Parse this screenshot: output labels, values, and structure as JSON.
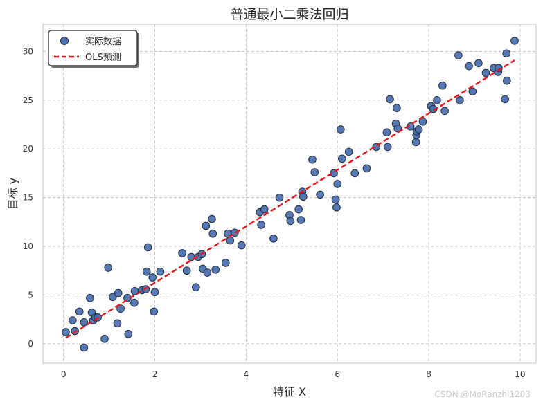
{
  "chart_data": {
    "type": "scatter",
    "title": "普通最小二乘法回归",
    "xlabel": "特征 X",
    "ylabel": "目标 y",
    "xlim": [
      -0.45,
      10.35
    ],
    "ylim": [
      -2,
      32.8
    ],
    "xticks": [
      0,
      2,
      4,
      6,
      8,
      10
    ],
    "yticks": [
      0,
      5,
      10,
      15,
      20,
      25,
      30
    ],
    "xtick_labels": [
      "0",
      "2",
      "4",
      "6",
      "8",
      "10"
    ],
    "ytick_labels": [
      "0",
      "5",
      "10",
      "15",
      "20",
      "25",
      "30"
    ],
    "grid": true,
    "legend": {
      "location": "top-left",
      "entries": [
        "实际数据",
        "OLS预测"
      ]
    },
    "series": [
      {
        "name": "实际数据",
        "kind": "scatter",
        "color": "#4c72b0",
        "x": [
          0.05,
          0.2,
          0.25,
          0.35,
          0.45,
          0.45,
          0.58,
          0.62,
          0.65,
          0.7,
          0.75,
          0.9,
          0.98,
          1.08,
          1.18,
          1.2,
          1.25,
          1.4,
          1.42,
          1.55,
          1.56,
          1.72,
          1.8,
          1.82,
          1.85,
          1.95,
          1.98,
          2.0,
          2.12,
          2.6,
          2.7,
          2.8,
          2.9,
          2.95,
          3.03,
          3.05,
          3.12,
          3.15,
          3.25,
          3.27,
          3.33,
          3.55,
          3.6,
          3.65,
          3.75,
          3.9,
          4.3,
          4.33,
          4.4,
          4.6,
          4.73,
          4.95,
          4.97,
          5.15,
          5.2,
          5.23,
          5.25,
          5.45,
          5.5,
          5.62,
          5.92,
          5.96,
          5.98,
          6.0,
          6.07,
          6.1,
          6.25,
          6.38,
          6.64,
          6.85,
          7.08,
          7.1,
          7.15,
          7.28,
          7.3,
          7.32,
          7.6,
          7.72,
          7.73,
          7.74,
          7.78,
          7.87,
          8.05,
          8.1,
          8.18,
          8.3,
          8.35,
          8.65,
          8.68,
          8.88,
          8.96,
          9.09,
          9.25,
          9.42,
          9.52,
          9.53,
          9.67,
          9.7,
          9.71,
          9.88
        ],
        "y": [
          1.2,
          2.4,
          1.3,
          3.3,
          -0.4,
          2.2,
          4.7,
          3.2,
          2.4,
          2.7,
          2.7,
          0.5,
          7.8,
          4.8,
          2.1,
          5.2,
          3.6,
          4.7,
          1.0,
          4.2,
          5.4,
          5.5,
          5.6,
          7.4,
          9.9,
          6.8,
          3.3,
          5.3,
          7.4,
          9.3,
          7.5,
          8.9,
          5.8,
          8.9,
          9.2,
          7.7,
          12.1,
          7.3,
          12.8,
          11.3,
          7.6,
          8.3,
          11.3,
          10.6,
          11.4,
          10.1,
          13.5,
          12.2,
          13.8,
          10.8,
          15.0,
          13.2,
          12.6,
          13.8,
          12.7,
          15.6,
          15.1,
          18.9,
          17.6,
          15.3,
          17.5,
          14.8,
          14.0,
          16.4,
          22.0,
          19.0,
          19.7,
          17.5,
          18.0,
          20.2,
          21.7,
          20.2,
          25.1,
          22.6,
          24.2,
          22.1,
          22.3,
          20.7,
          21.4,
          21.8,
          22.0,
          22.8,
          24.4,
          24.1,
          25.0,
          26.5,
          23.9,
          29.6,
          25.0,
          28.5,
          25.9,
          28.8,
          27.8,
          28.3,
          27.9,
          28.3,
          25.1,
          29.8,
          27.0,
          31.1
        ]
      },
      {
        "name": "OLS预测",
        "kind": "line",
        "style": "dashed",
        "color": "#e8161a",
        "x": [
          0.05,
          9.88
        ],
        "y": [
          0.6,
          29.1
        ]
      }
    ]
  },
  "watermark": "CSDN @MoRanzhi1203"
}
